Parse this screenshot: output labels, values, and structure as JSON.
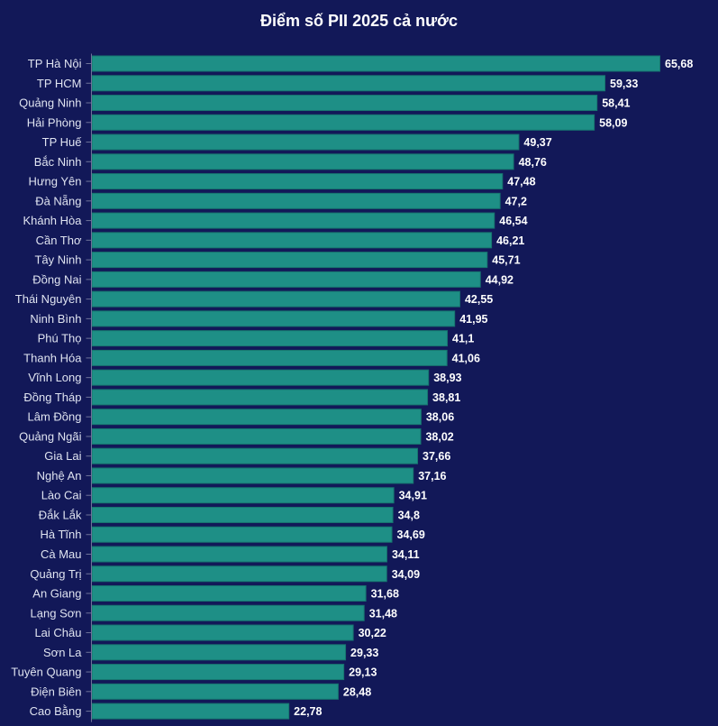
{
  "chart_data": {
    "type": "bar",
    "orientation": "horizontal",
    "title": "Điểm số PII 2025 cả nước",
    "xlabel": "",
    "ylabel": "",
    "xlim": [
      0,
      65.68
    ],
    "grid": false,
    "legend": "none",
    "decimal_separator": ",",
    "colors": {
      "background": "#121858",
      "bar": "#1e8f86",
      "bar_edge": "#17756f",
      "text": "#ffffff",
      "category_text": "#dfe3f0"
    },
    "categories": [
      "TP Hà Nội",
      "TP HCM",
      "Quảng Ninh",
      "Hải Phòng",
      "TP Huế",
      "Bắc Ninh",
      "Hưng Yên",
      "Đà Nẵng",
      "Khánh Hòa",
      "Cần Thơ",
      "Tây Ninh",
      "Đồng Nai",
      "Thái Nguyên",
      "Ninh Bình",
      "Phú Thọ",
      "Thanh Hóa",
      "Vĩnh Long",
      "Đồng Tháp",
      "Lâm Đồng",
      "Quảng Ngãi",
      "Gia Lai",
      "Nghệ An",
      "Lào Cai",
      "Đắk Lắk",
      "Hà Tĩnh",
      "Cà Mau",
      "Quảng Trị",
      "An Giang",
      "Lạng Sơn",
      "Lai Châu",
      "Sơn La",
      "Tuyên Quang",
      "Điện Biên",
      "Cao Bằng"
    ],
    "values": [
      65.68,
      59.33,
      58.41,
      58.09,
      49.37,
      48.76,
      47.48,
      47.2,
      46.54,
      46.21,
      45.71,
      44.92,
      42.55,
      41.95,
      41.1,
      41.06,
      38.93,
      38.81,
      38.06,
      38.02,
      37.66,
      37.16,
      34.91,
      34.8,
      34.69,
      34.11,
      34.09,
      31.68,
      31.48,
      30.22,
      29.33,
      29.13,
      28.48,
      22.78
    ],
    "value_labels": [
      "65,68",
      "59,33",
      "58,41",
      "58,09",
      "49,37",
      "48,76",
      "47,48",
      "47,2",
      "46,54",
      "46,21",
      "45,71",
      "44,92",
      "42,55",
      "41,95",
      "41,1",
      "41,06",
      "38,93",
      "38,81",
      "38,06",
      "38,02",
      "37,66",
      "37,16",
      "34,91",
      "34,8",
      "34,69",
      "34,11",
      "34,09",
      "31,68",
      "31,48",
      "30,22",
      "29,33",
      "29,13",
      "28,48",
      "22,78"
    ]
  }
}
